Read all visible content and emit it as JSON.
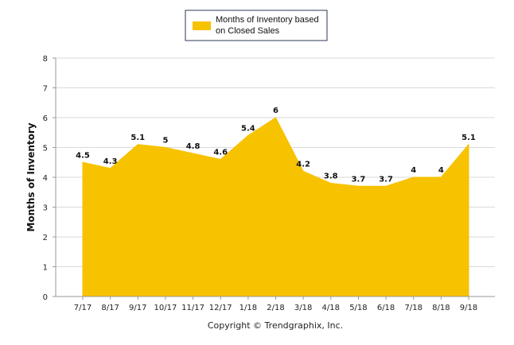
{
  "colors": {
    "area": "#F7C200",
    "grid": "#D9D9D9",
    "axis": "#9A9A9A"
  },
  "chart_data": {
    "type": "area",
    "categories": [
      "7/17",
      "8/17",
      "9/17",
      "10/17",
      "11/17",
      "12/17",
      "1/18",
      "2/18",
      "3/18",
      "4/18",
      "5/18",
      "6/18",
      "7/18",
      "8/18",
      "9/18"
    ],
    "series": [
      {
        "name": "Months of Inventory based on Closed Sales",
        "values": [
          4.5,
          4.3,
          5.1,
          5,
          4.8,
          4.6,
          5.4,
          6,
          4.2,
          3.8,
          3.7,
          3.7,
          4,
          4,
          5.1
        ]
      }
    ],
    "data_labels": [
      "4.5",
      "4.3",
      "5.1",
      "5",
      "4.8",
      "4.6",
      "5.4",
      "6",
      "4.2",
      "3.8",
      "3.7",
      "3.7",
      "4",
      "4",
      "5.1"
    ],
    "ylabel": "Months of Inventory",
    "ylim": [
      0,
      8
    ],
    "yticks": [
      "0",
      "1",
      "2",
      "3",
      "4",
      "5",
      "6",
      "7",
      "8"
    ],
    "grid": true,
    "legend_position": "top-center",
    "legend_lines": [
      "Months of Inventory based",
      "on Closed Sales"
    ],
    "footer": "Copyright © Trendgraphix, Inc."
  }
}
